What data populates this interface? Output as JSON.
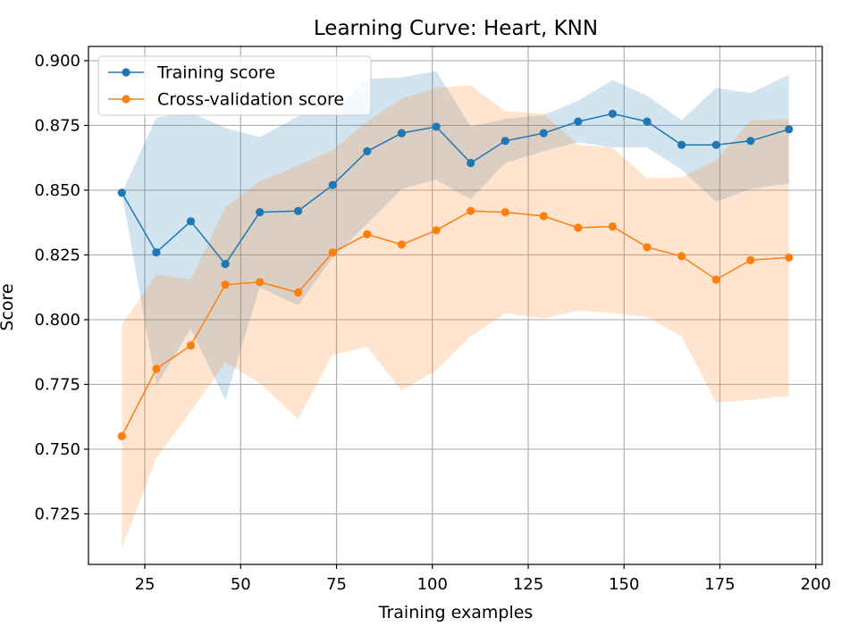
{
  "chart_data": {
    "type": "line",
    "title": "Learning Curve: Heart, KNN",
    "xlabel": "Training examples",
    "ylabel": "Score",
    "xlim": [
      10.3,
      201.7
    ],
    "ylim": [
      0.7055,
      0.9055
    ],
    "xticks": [
      25,
      50,
      75,
      100,
      125,
      150,
      175,
      200
    ],
    "xtick_labels": [
      "25",
      "50",
      "75",
      "100",
      "125",
      "150",
      "175",
      "200"
    ],
    "yticks": [
      0.725,
      0.75,
      0.775,
      0.8,
      0.825,
      0.85,
      0.875,
      0.9
    ],
    "ytick_labels": [
      "0.725",
      "0.750",
      "0.775",
      "0.800",
      "0.825",
      "0.850",
      "0.875",
      "0.900"
    ],
    "grid": true,
    "legend": "upper-left",
    "x": [
      19,
      28,
      37,
      46,
      55,
      65,
      74,
      83,
      92,
      101,
      110,
      119,
      129,
      138,
      147,
      156,
      165,
      174,
      183,
      193
    ],
    "series": [
      {
        "name": "Training score",
        "color": "#1f77b4",
        "values": [
          0.849,
          0.826,
          0.838,
          0.8215,
          0.8415,
          0.842,
          0.852,
          0.865,
          0.872,
          0.8745,
          0.8605,
          0.869,
          0.872,
          0.8765,
          0.8795,
          0.8765,
          0.8675,
          0.8675,
          0.869,
          0.8735
        ],
        "band_upper": [
          0.849,
          0.878,
          0.88,
          0.874,
          0.8705,
          0.8785,
          0.88,
          0.893,
          0.8935,
          0.896,
          0.8745,
          0.8775,
          0.879,
          0.8845,
          0.8925,
          0.8865,
          0.877,
          0.8895,
          0.8875,
          0.8945
        ],
        "band_lower": [
          0.849,
          0.7745,
          0.7965,
          0.769,
          0.8125,
          0.8055,
          0.824,
          0.837,
          0.8505,
          0.854,
          0.8465,
          0.8605,
          0.865,
          0.8685,
          0.8665,
          0.8665,
          0.858,
          0.8455,
          0.8505,
          0.8525
        ]
      },
      {
        "name": "Cross-validation score",
        "color": "#ff7f0e",
        "values": [
          0.755,
          0.781,
          0.79,
          0.8135,
          0.8145,
          0.8105,
          0.826,
          0.833,
          0.829,
          0.8345,
          0.842,
          0.8415,
          0.84,
          0.8355,
          0.836,
          0.828,
          0.8245,
          0.8155,
          0.823,
          0.824
        ],
        "band_upper": [
          0.798,
          0.8175,
          0.8155,
          0.8435,
          0.8535,
          0.8595,
          0.8655,
          0.8765,
          0.8855,
          0.8895,
          0.8905,
          0.8805,
          0.8795,
          0.8675,
          0.8665,
          0.8545,
          0.855,
          0.8615,
          0.877,
          0.8775
        ],
        "band_lower": [
          0.712,
          0.7465,
          0.7645,
          0.7835,
          0.7755,
          0.7615,
          0.7865,
          0.7895,
          0.7725,
          0.7805,
          0.7935,
          0.8025,
          0.8005,
          0.8035,
          0.8025,
          0.801,
          0.7935,
          0.768,
          0.769,
          0.7705
        ]
      }
    ]
  }
}
